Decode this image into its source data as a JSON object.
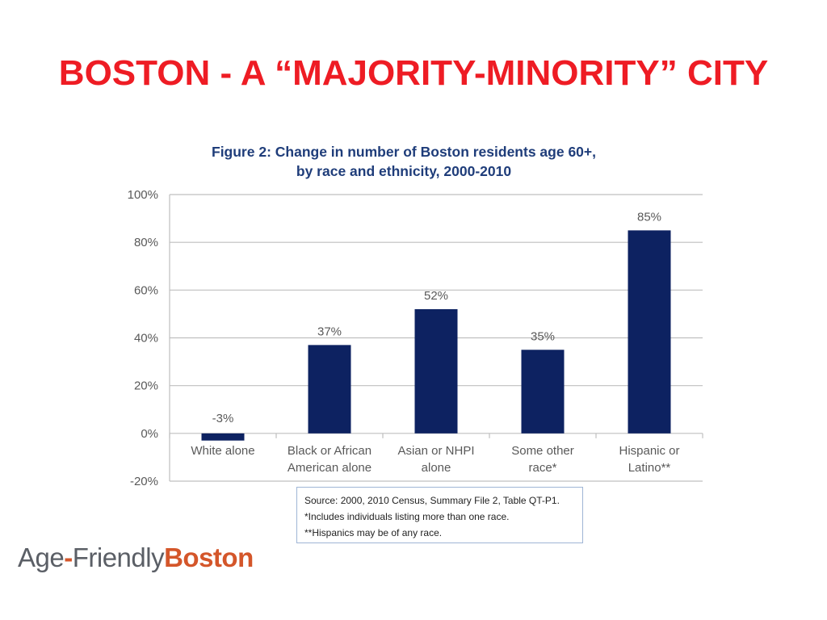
{
  "slide": {
    "title": "BOSTON - A “MAJORITY-MINORITY” CITY"
  },
  "chart_data": {
    "type": "bar",
    "title_line1": "Figure 2: Change in number of Boston residents age 60+,",
    "title_line2": "by race and ethnicity, 2000-2010",
    "categories": [
      [
        "White alone"
      ],
      [
        "Black or African",
        "American alone"
      ],
      [
        "Asian or NHPI",
        "alone"
      ],
      [
        "Some other",
        "race*"
      ],
      [
        "Hispanic or",
        "Latino**"
      ]
    ],
    "values": [
      -3,
      37,
      52,
      35,
      85
    ],
    "value_labels": [
      "-3%",
      "37%",
      "52%",
      "35%",
      "85%"
    ],
    "ylim": [
      -20,
      100
    ],
    "yticks": [
      -20,
      0,
      20,
      40,
      60,
      80,
      100
    ],
    "ytick_labels": [
      "-20%",
      "0%",
      "20%",
      "40%",
      "60%",
      "80%",
      "100%"
    ],
    "xlabel": "",
    "ylabel": "",
    "grid": true,
    "bar_color": "#0d2261"
  },
  "source_note": {
    "line1": "Source: 2000, 2010 Census, Summary File 2, Table QT-P1.",
    "line2": "*Includes individuals listing more than one race.",
    "line3": "**Hispanics may be of any race."
  },
  "logo": {
    "part1": "Age",
    "dash": "-",
    "part2": "Friendly",
    "part3": "Boston"
  }
}
